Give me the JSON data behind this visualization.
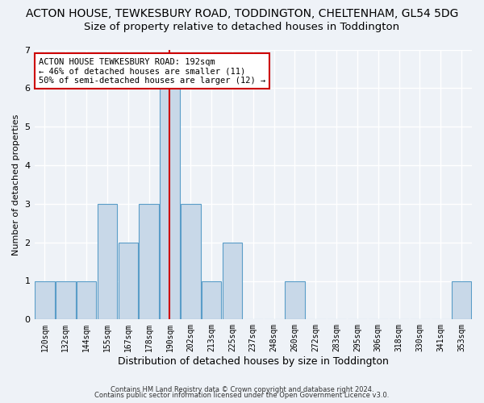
{
  "title": "ACTON HOUSE, TEWKESBURY ROAD, TODDINGTON, CHELTENHAM, GL54 5DG",
  "subtitle": "Size of property relative to detached houses in Toddington",
  "xlabel": "Distribution of detached houses by size in Toddington",
  "ylabel": "Number of detached properties",
  "categories": [
    "120sqm",
    "132sqm",
    "144sqm",
    "155sqm",
    "167sqm",
    "178sqm",
    "190sqm",
    "202sqm",
    "213sqm",
    "225sqm",
    "237sqm",
    "248sqm",
    "260sqm",
    "272sqm",
    "283sqm",
    "295sqm",
    "306sqm",
    "318sqm",
    "330sqm",
    "341sqm",
    "353sqm"
  ],
  "values": [
    1,
    1,
    1,
    3,
    2,
    3,
    6,
    3,
    1,
    2,
    0,
    0,
    1,
    0,
    0,
    0,
    0,
    0,
    0,
    0,
    1
  ],
  "bar_color": "#c8d8e8",
  "bar_edge_color": "#5a9dc8",
  "vline_x": 6,
  "vline_color": "#cc0000",
  "annotation_text": "ACTON HOUSE TEWKESBURY ROAD: 192sqm\n← 46% of detached houses are smaller (11)\n50% of semi-detached houses are larger (12) →",
  "annotation_box_color": "#ffffff",
  "annotation_box_edge": "#cc0000",
  "ylim": [
    0,
    7
  ],
  "yticks": [
    0,
    1,
    2,
    3,
    4,
    5,
    6,
    7
  ],
  "footer1": "Contains HM Land Registry data © Crown copyright and database right 2024.",
  "footer2": "Contains public sector information licensed under the Open Government Licence v3.0.",
  "bg_color": "#eef2f7",
  "grid_color": "#ffffff",
  "title_fontsize": 10,
  "subtitle_fontsize": 9.5,
  "xlabel_fontsize": 9,
  "ylabel_fontsize": 8,
  "tick_fontsize": 7,
  "annotation_fontsize": 7.5,
  "footer_fontsize": 6
}
